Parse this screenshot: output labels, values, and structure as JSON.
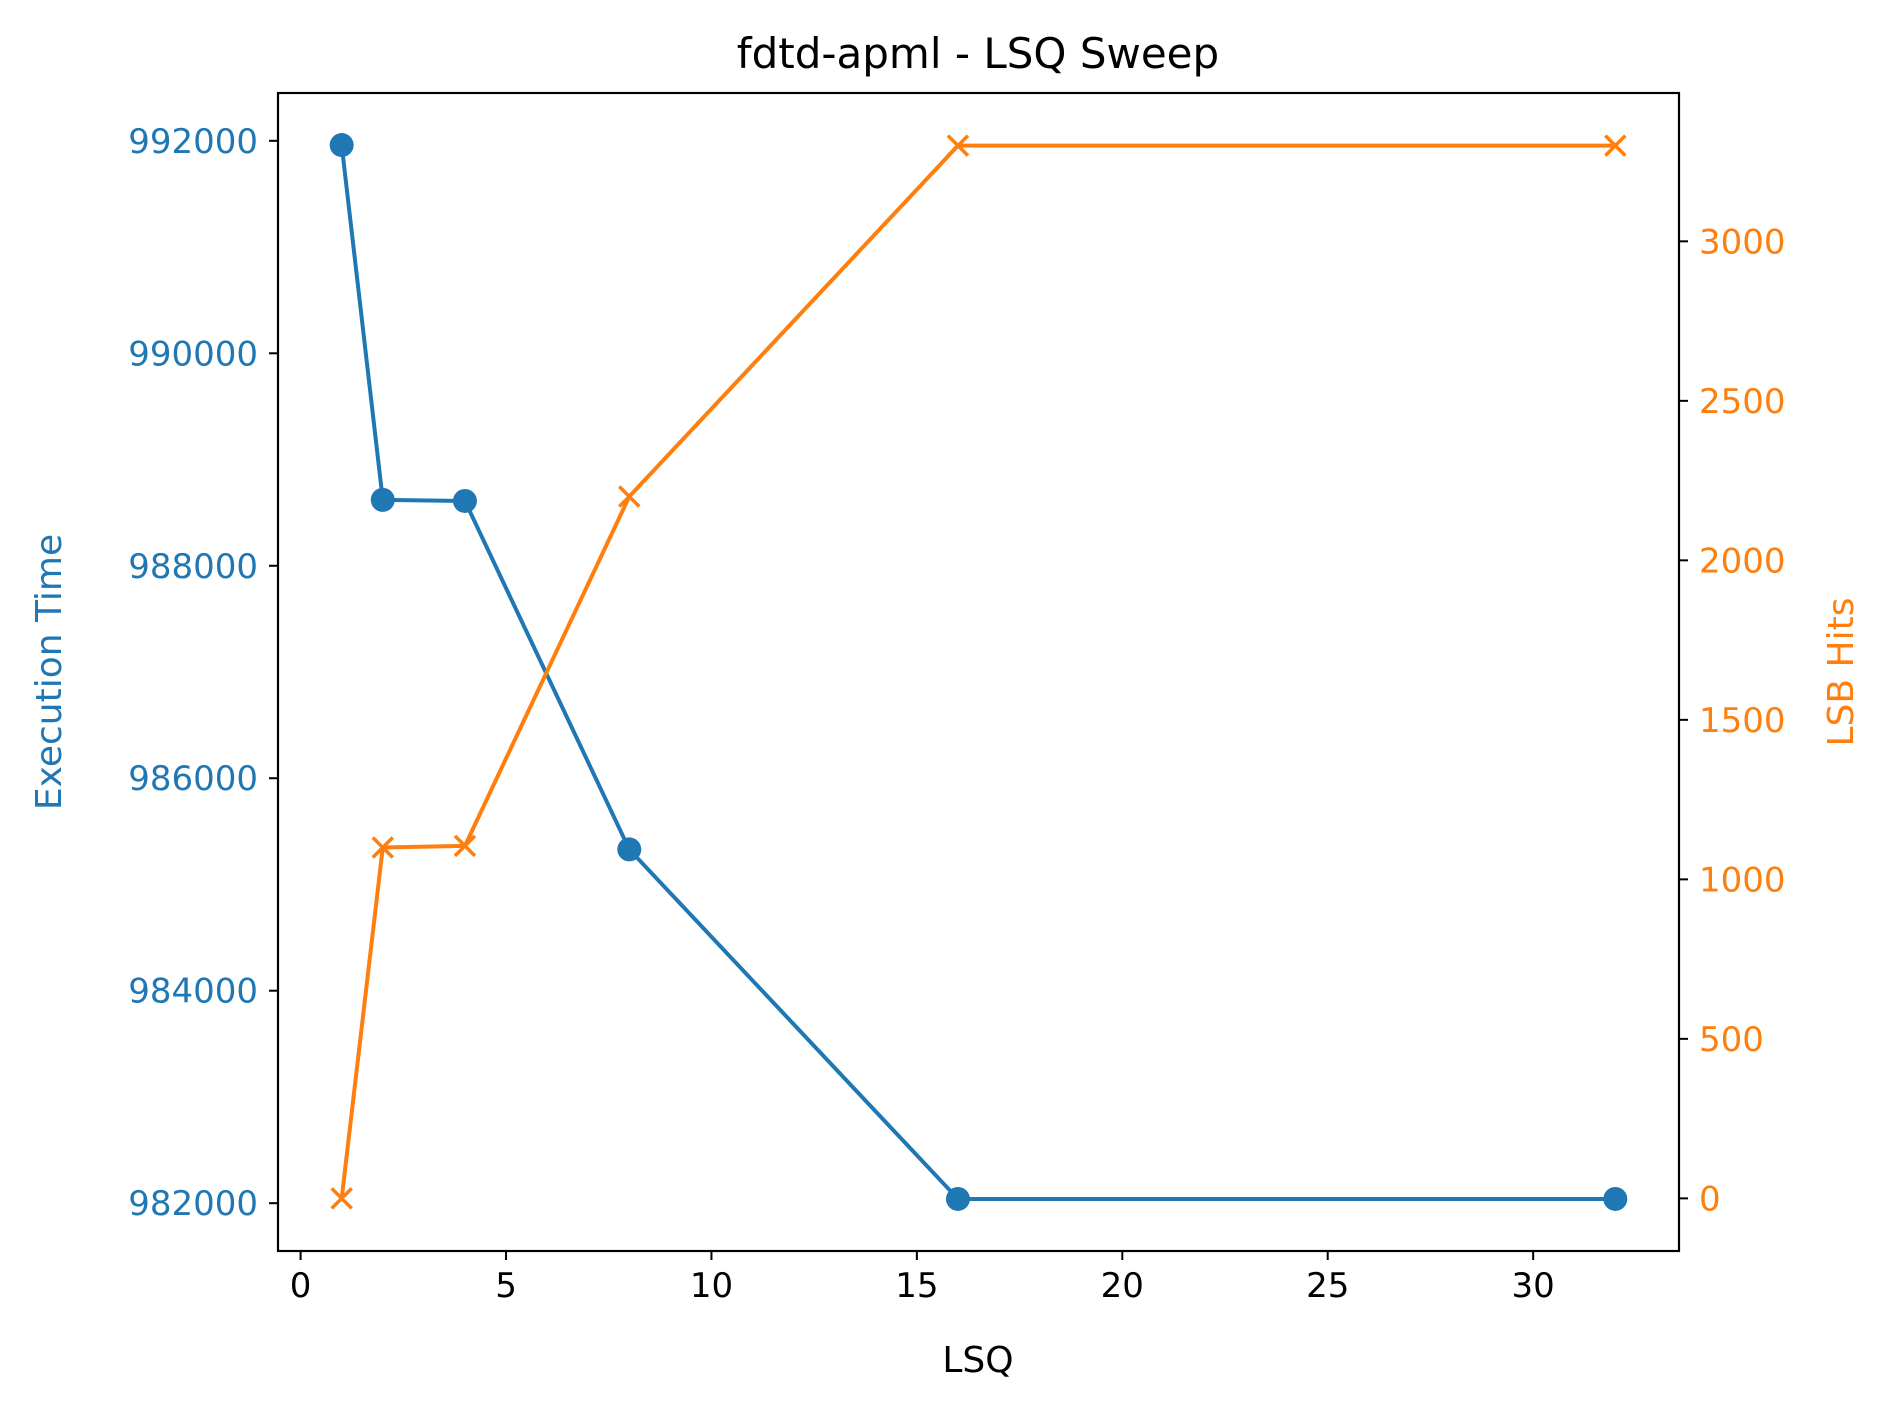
{
  "chart_data": {
    "type": "line",
    "title": "fdtd-apml - LSQ Sweep",
    "xlabel": "LSQ",
    "ylabel_left": "Execution Time",
    "ylabel_right": "LSB Hits",
    "xlim": [
      -0.55,
      33.55
    ],
    "ylim_left": [
      981550,
      992450
    ],
    "ylim_right": [
      -165,
      3465
    ],
    "x_ticks": [
      0,
      5,
      10,
      15,
      20,
      25,
      30
    ],
    "y_ticks_left": [
      982000,
      984000,
      986000,
      988000,
      990000,
      992000
    ],
    "y_ticks_right": [
      0,
      500,
      1000,
      1500,
      2000,
      2500,
      3000
    ],
    "grid": false,
    "x": [
      1,
      2,
      4,
      8,
      16,
      32
    ],
    "series": [
      {
        "name": "Execution Time",
        "axis": "left",
        "marker": "circle",
        "color": "#1f77b4",
        "values": [
          991960,
          988620,
          988610,
          985330,
          982040,
          982040
        ]
      },
      {
        "name": "LSB Hits",
        "axis": "right",
        "marker": "x",
        "color": "#ff7f0e",
        "values": [
          0,
          1100,
          1105,
          2200,
          3300,
          3300
        ]
      }
    ]
  }
}
